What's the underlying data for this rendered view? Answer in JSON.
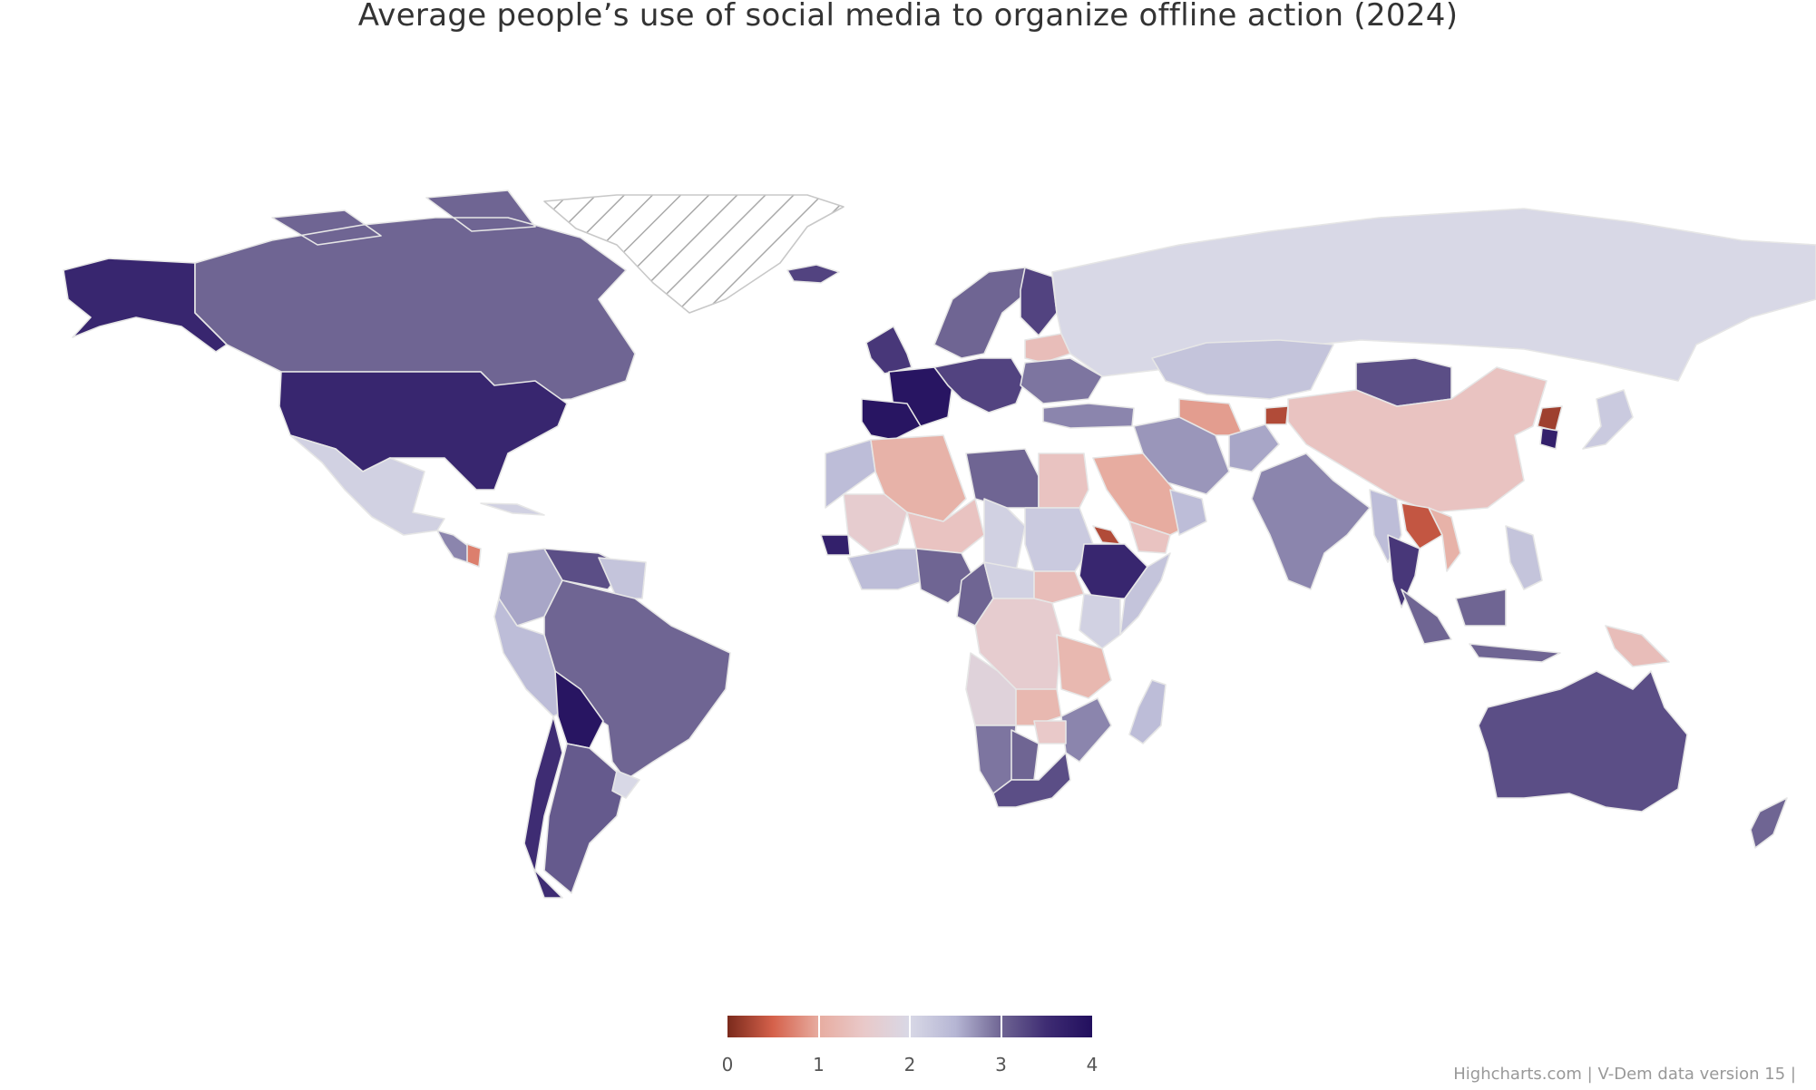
{
  "title": "Average people’s use of social media to organize offline action (2024)",
  "credits": "Highcharts.com | V-Dem data version 15 |",
  "colors": {
    "stops": [
      "#7a2a1c",
      "#d5614b",
      "#e7aca0",
      "#e9c9c9",
      "#d8d8e6",
      "#b6b6d4",
      "#6f6593",
      "#3e2c73",
      "#220f5e"
    ],
    "no_data_hatch": "#aaaaaa",
    "border": "#e6e6e6"
  },
  "legend": {
    "min": 0,
    "max": 4,
    "ticks": [
      0,
      1,
      2,
      3,
      4
    ],
    "tick_labels": [
      "0",
      "1",
      "2",
      "3",
      "4"
    ]
  },
  "chart_data": {
    "type": "choropleth",
    "metric": "Average people’s use of social media to organize offline action",
    "year": 2024,
    "regions": [
      {
        "name": "Alaska (United States)",
        "value": 3.6
      },
      {
        "name": "Canada",
        "value": 3.0
      },
      {
        "name": "United States",
        "value": 3.6
      },
      {
        "name": "Mexico",
        "value": 2.1
      },
      {
        "name": "Central America",
        "value": 2.8
      },
      {
        "name": "Nicaragua",
        "value": 0.7
      },
      {
        "name": "Cuba",
        "value": 2.1
      },
      {
        "name": "Greenland",
        "value": null
      },
      {
        "name": "Iceland",
        "value": 3.3
      },
      {
        "name": "Colombia",
        "value": 2.6
      },
      {
        "name": "Venezuela",
        "value": 3.2
      },
      {
        "name": "Guyana / Suriname",
        "value": 2.3
      },
      {
        "name": "Ecuador / Peru",
        "value": 2.4
      },
      {
        "name": "Brazil",
        "value": 3.0
      },
      {
        "name": "Bolivia",
        "value": 3.9
      },
      {
        "name": "Chile",
        "value": 3.5
      },
      {
        "name": "Argentina",
        "value": 3.1
      },
      {
        "name": "Uruguay",
        "value": 2.0
      },
      {
        "name": "United Kingdom",
        "value": 3.4
      },
      {
        "name": "France",
        "value": 3.9
      },
      {
        "name": "Spain",
        "value": 3.9
      },
      {
        "name": "Scandinavia",
        "value": 3.0
      },
      {
        "name": "Finland",
        "value": 3.3
      },
      {
        "name": "Central Europe",
        "value": 3.3
      },
      {
        "name": "Belarus",
        "value": 1.3
      },
      {
        "name": "Ukraine",
        "value": 2.9
      },
      {
        "name": "Russia",
        "value": 2.0
      },
      {
        "name": "Kazakhstan",
        "value": 2.3
      },
      {
        "name": "Mongolia",
        "value": 3.2
      },
      {
        "name": "China",
        "value": 1.4
      },
      {
        "name": "North Korea",
        "value": 0.2
      },
      {
        "name": "South Korea",
        "value": 3.7
      },
      {
        "name": "Japan",
        "value": 2.2
      },
      {
        "name": "Turkey",
        "value": 2.8
      },
      {
        "name": "Turkmenistan",
        "value": 0.9
      },
      {
        "name": "Tajikistan",
        "value": 0.3
      },
      {
        "name": "Iran",
        "value": 2.7
      },
      {
        "name": "Afghanistan",
        "value": 2.6
      },
      {
        "name": "Saudi Arabia",
        "value": 1.0
      },
      {
        "name": "Yemen",
        "value": 1.4
      },
      {
        "name": "Oman",
        "value": 2.4
      },
      {
        "name": "India",
        "value": 2.8
      },
      {
        "name": "Myanmar",
        "value": 2.4
      },
      {
        "name": "Laos",
        "value": 0.4
      },
      {
        "name": "Vietnam",
        "value": 1.1
      },
      {
        "name": "Thailand",
        "value": 3.4
      },
      {
        "name": "Indonesia",
        "value": 3.0
      },
      {
        "name": "Philippines",
        "value": 2.3
      },
      {
        "name": "Papua New Guinea",
        "value": 1.3
      },
      {
        "name": "Australia",
        "value": 3.2
      },
      {
        "name": "New Zealand",
        "value": 3.0
      },
      {
        "name": "Morocco",
        "value": 2.4
      },
      {
        "name": "Algeria",
        "value": 1.1
      },
      {
        "name": "Libya",
        "value": 3.0
      },
      {
        "name": "Egypt",
        "value": 1.4
      },
      {
        "name": "Mali",
        "value": 1.6
      },
      {
        "name": "Niger",
        "value": 1.4
      },
      {
        "name": "Chad",
        "value": 2.1
      },
      {
        "name": "Sudan",
        "value": 2.2
      },
      {
        "name": "Eritrea",
        "value": 0.3
      },
      {
        "name": "Ethiopia",
        "value": 3.6
      },
      {
        "name": "Somalia",
        "value": 2.3
      },
      {
        "name": "Senegal",
        "value": 3.7
      },
      {
        "name": "West Africa coast",
        "value": 2.4
      },
      {
        "name": "Nigeria",
        "value": 3.0
      },
      {
        "name": "Cameroon",
        "value": 3.0
      },
      {
        "name": "Central African Republic",
        "value": 2.1
      },
      {
        "name": "South Sudan",
        "value": 1.3
      },
      {
        "name": "DR Congo",
        "value": 1.6
      },
      {
        "name": "Kenya",
        "value": 2.1
      },
      {
        "name": "Tanzania",
        "value": 1.2
      },
      {
        "name": "Angola",
        "value": 1.8
      },
      {
        "name": "Zambia",
        "value": 1.2
      },
      {
        "name": "Mozambique",
        "value": 2.8
      },
      {
        "name": "Zimbabwe",
        "value": 1.5
      },
      {
        "name": "Namibia",
        "value": 2.9
      },
      {
        "name": "Botswana",
        "value": 3.0
      },
      {
        "name": "South Africa",
        "value": 3.2
      },
      {
        "name": "Madagascar",
        "value": 2.4
      }
    ]
  }
}
